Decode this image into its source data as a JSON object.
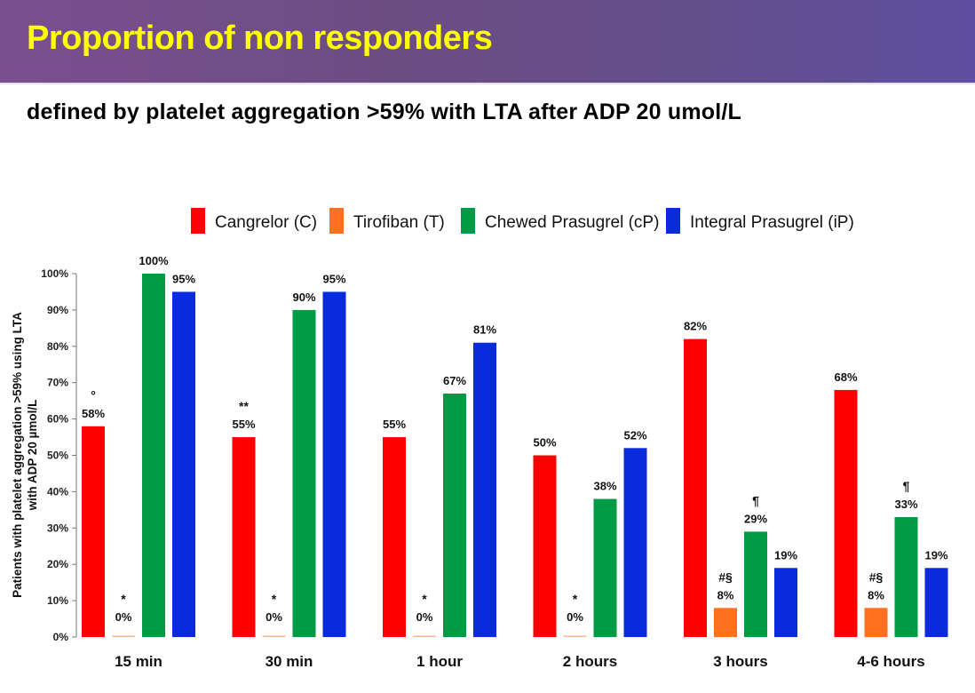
{
  "header": {
    "title": "Proportion of non responders",
    "subtitle": "defined by platelet aggregation >59% with LTA after ADP 20 umol/L"
  },
  "colors": {
    "banner_text": "#ffff00",
    "cangrelor": "#ff0000",
    "tirofiban": "#ff7020",
    "chewed_prasugrel": "#009a44",
    "integral_prasugrel": "#0a2bdc"
  },
  "chart_data": {
    "type": "bar",
    "title": "Proportion of non responders",
    "subtitle": "defined by platelet aggregation >59% with LTA after ADP 20 umol/L",
    "xlabel": "",
    "ylabel": "Patients with platelet aggregation >59% using LTA with ADP 20 µmol/L",
    "ylabel_lines": [
      "Patients with platelet aggregation >59% using LTA",
      "with ADP 20 µmol/L"
    ],
    "ylim": [
      0,
      100
    ],
    "yticks": [
      0,
      10,
      20,
      30,
      40,
      50,
      60,
      70,
      80,
      90,
      100
    ],
    "ytick_labels": [
      "0%",
      "10%",
      "20%",
      "30%",
      "40%",
      "50%",
      "60%",
      "70%",
      "80%",
      "90%",
      "100%"
    ],
    "grid": false,
    "legend_position": "top",
    "categories": [
      "15 min",
      "30 min",
      "1 hour",
      "2 hours",
      "3 hours",
      "4-6 hours"
    ],
    "series": [
      {
        "name": "Cangrelor (C)",
        "color": "#ff0000",
        "values": [
          58,
          55,
          55,
          50,
          82,
          68
        ],
        "labels": [
          "58%",
          "55%",
          "55%",
          "50%",
          "82%",
          "68%"
        ],
        "annotations": [
          "°",
          "**",
          "",
          "",
          "",
          ""
        ]
      },
      {
        "name": "Tirofiban (T)",
        "color": "#ff7020",
        "values": [
          0,
          0,
          0,
          0,
          8,
          8
        ],
        "labels": [
          "0%",
          "0%",
          "0%",
          "0%",
          "8%",
          "8%"
        ],
        "annotations": [
          "*",
          "*",
          "*",
          "*",
          "#§",
          "#§"
        ]
      },
      {
        "name": "Chewed Prasugrel (cP)",
        "color": "#009a44",
        "values": [
          100,
          90,
          67,
          38,
          29,
          33
        ],
        "labels": [
          "100%",
          "90%",
          "67%",
          "38%",
          "29%",
          "33%"
        ],
        "annotations": [
          "",
          "",
          "",
          "",
          "¶",
          "¶"
        ]
      },
      {
        "name": "Integral Prasugrel (iP)",
        "color": "#0a2bdc",
        "values": [
          95,
          95,
          81,
          52,
          19,
          19
        ],
        "labels": [
          "95%",
          "95%",
          "81%",
          "52%",
          "19%",
          "19%"
        ],
        "annotations": [
          "",
          "",
          "",
          "",
          "",
          ""
        ]
      }
    ]
  }
}
